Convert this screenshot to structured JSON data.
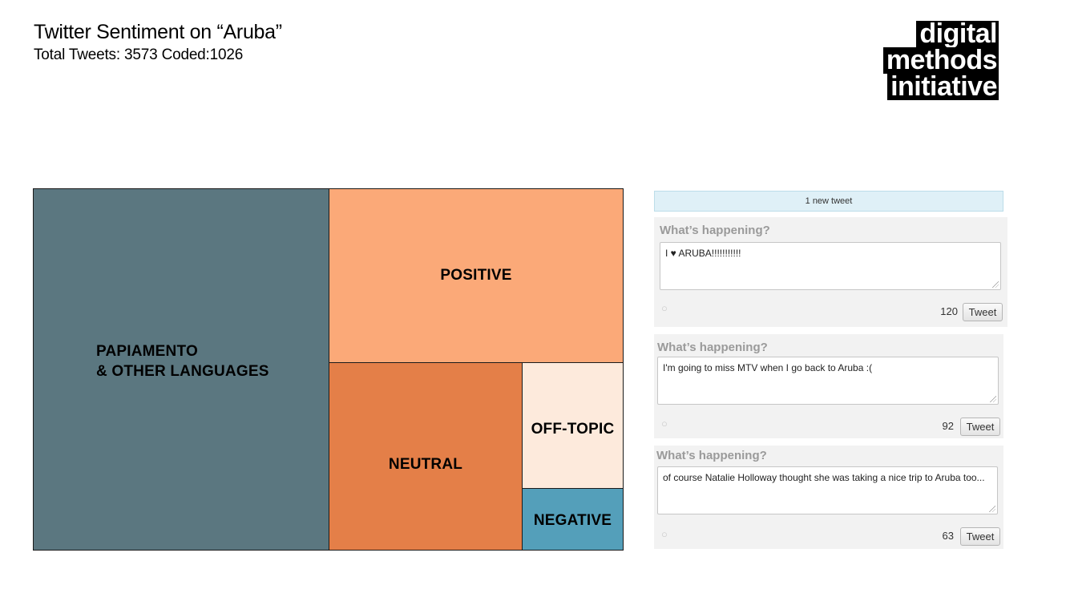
{
  "header": {
    "title": "Twitter Sentiment on “Aruba”",
    "subtitle": "Total Tweets: 3573 Coded:1026"
  },
  "logo": {
    "lines": [
      "digital",
      "methods",
      "initiative"
    ]
  },
  "chart_data": {
    "type": "treemap",
    "title": "Twitter Sentiment on “Aruba”",
    "nodes": [
      {
        "name": "PAPIAMENTO & OTHER LANGUAGES",
        "label_lines": [
          "PAPIAMENTO",
          "& OTHER LANGUAGES"
        ],
        "value": 0.5,
        "color": "#5b7780"
      },
      {
        "name": "POSITIVE",
        "value": 0.24,
        "color": "#fba978"
      },
      {
        "name": "NEUTRAL",
        "value": 0.17,
        "color": "#e47f48"
      },
      {
        "name": "OFF-TOPIC",
        "value": 0.06,
        "color": "#fdeadc"
      },
      {
        "name": "NEGATIVE",
        "value": 0.03,
        "color": "#549fba"
      }
    ]
  },
  "feed": {
    "new_tweet_bar": "1 new tweet",
    "boxes": [
      {
        "prompt": "What’s happening?",
        "text": "I ♥ ARUBA!!!!!!!!!!!",
        "count": "120",
        "button": "Tweet"
      },
      {
        "prompt": "What’s happening?",
        "text": "I'm going to miss MTV when I go back to Aruba :(",
        "count": "92",
        "button": "Tweet"
      },
      {
        "prompt": "What’s happening?",
        "text": "of course Natalie Holloway thought she was taking a nice trip to Aruba too...",
        "count": "63",
        "button": "Tweet"
      }
    ]
  }
}
